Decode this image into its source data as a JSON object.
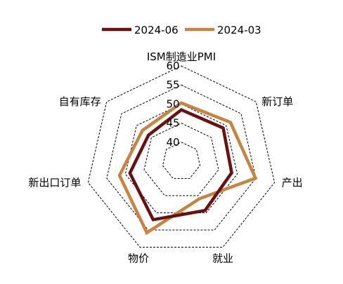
{
  "chart_data": {
    "type": "radar",
    "axes": [
      "ISM制造业PMI",
      "新订单",
      "产出",
      "就业",
      "物价",
      "新出口订单",
      "自有库存"
    ],
    "ticks": [
      40,
      45,
      50,
      55,
      60
    ],
    "range": [
      35,
      60
    ],
    "grid": "dashed rings",
    "legend_position": "top",
    "series": [
      {
        "name": "2024-06",
        "color": "#6b0f0f",
        "values": [
          48.5,
          49.0,
          48.5,
          49.3,
          52.0,
          48.8,
          46.0
        ]
      },
      {
        "name": "2024-03",
        "color": "#c8843f",
        "values": [
          50.3,
          51.4,
          54.9,
          45.9,
          55.8,
          51.6,
          48.0
        ]
      }
    ]
  }
}
